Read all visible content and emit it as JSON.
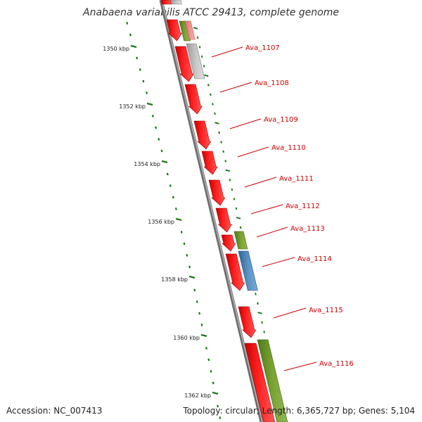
{
  "title": "Anabaena variabilis ATCC 29413, complete genome",
  "footer": {
    "accession": "Accession: NC_007413",
    "summary": "Topology: circular; Length: 6,365,727 bp; Genes: 5,104"
  },
  "ruler_labels": [
    "1350 kbp",
    "1352 kbp",
    "1354 kbp",
    "1356 kbp",
    "1358 kbp",
    "1360 kbp",
    "1362 kbp"
  ],
  "gene_labels": [
    "Ava_1107",
    "Ava_1108",
    "Ava_1109",
    "Ava_1110",
    "Ava_1111",
    "Ava_1112",
    "Ava_1113",
    "Ava_1114",
    "Ava_1115",
    "Ava_1116"
  ],
  "colors": {
    "background": "#ffffff",
    "backbone": "#888888",
    "tick": "#1a7a1a",
    "label": "#cc0000",
    "leader_line": "#cc0000",
    "gene_red": "#ff1a1a",
    "gene_pink": "#ff9a9a",
    "gene_green": "#6e9a2a",
    "gene_gray": "#bdbdbd",
    "gene_blue": "#4f86b8"
  }
}
